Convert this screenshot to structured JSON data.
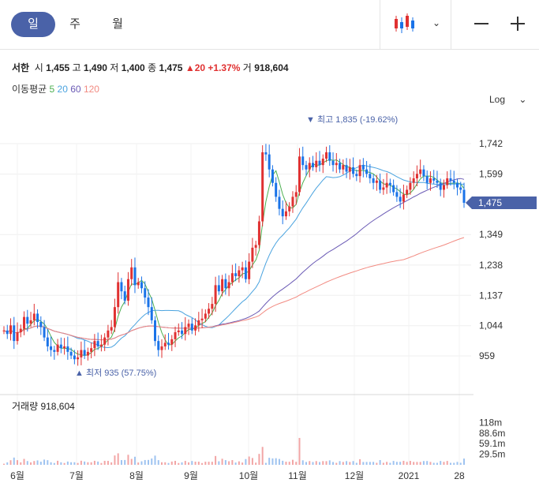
{
  "periods": [
    "일",
    "주",
    "월"
  ],
  "quote": {
    "name": "서한",
    "open_label": "시",
    "open": "1,455",
    "high_label": "고",
    "high": "1,490",
    "low_label": "저",
    "low": "1,400",
    "close_label": "종",
    "close": "1,475",
    "change": "▲20",
    "change_pct": "+1.37%",
    "volume_label": "거",
    "volume": "918,604"
  },
  "ma_legend": {
    "label": "이동평균",
    "items": [
      {
        "period": "5",
        "color": "#4caf50"
      },
      {
        "period": "20",
        "color": "#4aa3df"
      },
      {
        "period": "60",
        "color": "#6b5bb5"
      },
      {
        "period": "120",
        "color": "#f28b82"
      }
    ]
  },
  "scale_label": "Log",
  "annotations": {
    "high": "▼ 최고 1,835 (-19.62%)",
    "low": "▲ 최저 935 (57.75%)"
  },
  "volume_panel_label": "거래량 918,604",
  "colors": {
    "up": "#e03131",
    "down": "#1a73e8",
    "accent": "#4a62a8"
  },
  "chart_data": {
    "type": "candlestick",
    "scale": "log",
    "y_ticks": [
      "1,742",
      "1,599",
      "1,349",
      "1,238",
      "1,137",
      "1,044",
      "959"
    ],
    "y_tick_values": [
      1742,
      1599,
      1349,
      1238,
      1137,
      1044,
      959
    ],
    "current_price": "1,475",
    "x_ticks": [
      "6월",
      "7월",
      "8월",
      "9월",
      "10월",
      "11월",
      "12월",
      "2021",
      "28"
    ],
    "closes": [
      1030,
      1020,
      1045,
      1000,
      1025,
      1035,
      1070,
      1050,
      1060,
      1080,
      1055,
      1040,
      1010,
      985,
      975,
      970,
      990,
      980,
      985,
      970,
      960,
      950,
      955,
      975,
      960,
      970,
      980,
      1000,
      985,
      990,
      1010,
      1030,
      1040,
      1100,
      1180,
      1150,
      1120,
      1190,
      1230,
      1170,
      1180,
      1160,
      1130,
      1100,
      1060,
      1000,
      975,
      985,
      995,
      990,
      1005,
      1025,
      1030,
      1020,
      1040,
      1050,
      1030,
      1045,
      1060,
      1065,
      1080,
      1095,
      1110,
      1170,
      1150,
      1190,
      1160,
      1180,
      1210,
      1200,
      1220,
      1230,
      1190,
      1250,
      1300,
      1310,
      1400,
      1700,
      1690,
      1620,
      1560,
      1500,
      1450,
      1420,
      1440,
      1460,
      1500,
      1520,
      1680,
      1640,
      1620,
      1650,
      1630,
      1660,
      1640,
      1670,
      1700,
      1660,
      1640,
      1650,
      1620,
      1640,
      1610,
      1630,
      1600,
      1590,
      1640,
      1620,
      1600,
      1580,
      1560,
      1570,
      1530,
      1540,
      1560,
      1550,
      1520,
      1500,
      1480,
      1510,
      1530,
      1560,
      1580,
      1600,
      1620,
      1590,
      1560,
      1580,
      1570,
      1560,
      1530,
      1550,
      1580,
      1570,
      1560,
      1540,
      1530,
      1475
    ],
    "ma5": "5-day moving average",
    "volume_ticks": [
      "118m",
      "88.6m",
      "59.1m",
      "29.5m"
    ],
    "volume_tick_values": [
      118,
      88.6,
      59.1,
      29.5
    ]
  }
}
